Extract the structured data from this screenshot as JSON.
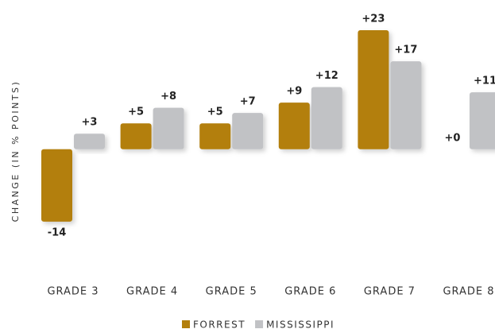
{
  "chart_data": {
    "type": "bar",
    "y_axis_label": "CHANGE (IN % POINTS)",
    "categories": [
      "GRADE 3",
      "GRADE 4",
      "GRADE 5",
      "GRADE 6",
      "GRADE 7",
      "GRADE 8"
    ],
    "series": [
      {
        "name": "FORREST",
        "color": "#b37f0c",
        "values": [
          -14,
          5,
          5,
          9,
          23,
          0
        ],
        "value_labels": [
          "-14",
          "+5",
          "+5",
          "+9",
          "+23",
          "+0"
        ]
      },
      {
        "name": "MISSISSIPPI",
        "color": "#c1c2c5",
        "values": [
          3,
          8,
          7,
          12,
          17,
          11
        ],
        "value_labels": [
          "+3",
          "+8",
          "+7",
          "+12",
          "+17",
          "+11"
        ]
      }
    ],
    "ylim": [
      -20,
      23
    ]
  }
}
